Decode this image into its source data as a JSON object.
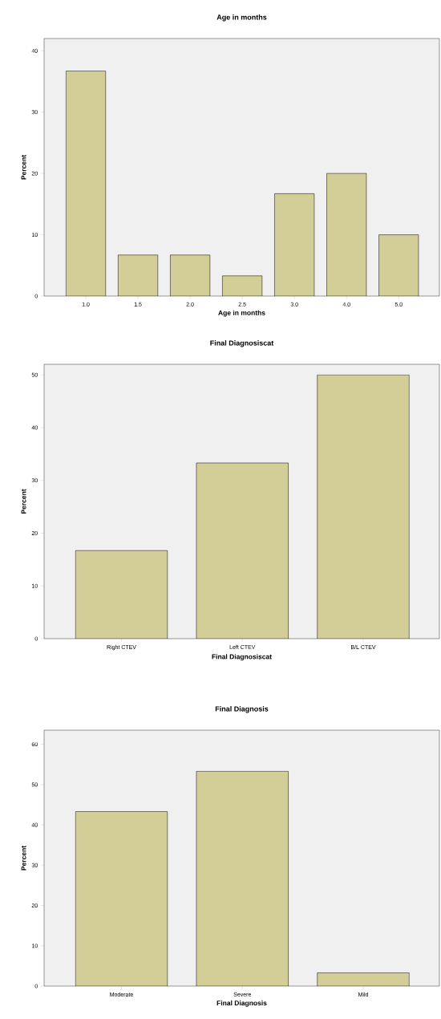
{
  "chart_data": [
    {
      "type": "bar",
      "title": "Age in months",
      "xlabel": "Age in months",
      "ylabel": "Percent",
      "categories": [
        "1.0",
        "1.5",
        "2.0",
        "2.5",
        "3.0",
        "4.0",
        "5.0"
      ],
      "values": [
        36.7,
        6.7,
        6.7,
        3.3,
        16.7,
        20.0,
        10.0
      ],
      "color": "#d3ce97",
      "ylim": [
        0,
        42
      ],
      "yticks": [
        0,
        10,
        20,
        30,
        40
      ]
    },
    {
      "type": "bar",
      "title": "Final Diagnosiscat",
      "xlabel": "Final Diagnosiscat",
      "ylabel": "Percent",
      "categories": [
        "Right CTEV",
        "Left CTEV",
        "B/L CTEV"
      ],
      "values": [
        16.7,
        33.3,
        50.0
      ],
      "color": "#d3ce97",
      "ylim": [
        0,
        52
      ],
      "yticks": [
        0,
        10,
        20,
        30,
        40,
        50
      ]
    },
    {
      "type": "bar",
      "title": "Final Diagnosis",
      "xlabel": "Final Diagnosis",
      "ylabel": "Percent",
      "categories": [
        "Moderate",
        "Severe",
        "Mild"
      ],
      "values": [
        43.3,
        53.3,
        3.3
      ],
      "color": "#d3ce97",
      "ylim": [
        0,
        63.5
      ],
      "yticks": [
        0,
        10,
        20,
        30,
        40,
        50,
        60
      ]
    }
  ]
}
